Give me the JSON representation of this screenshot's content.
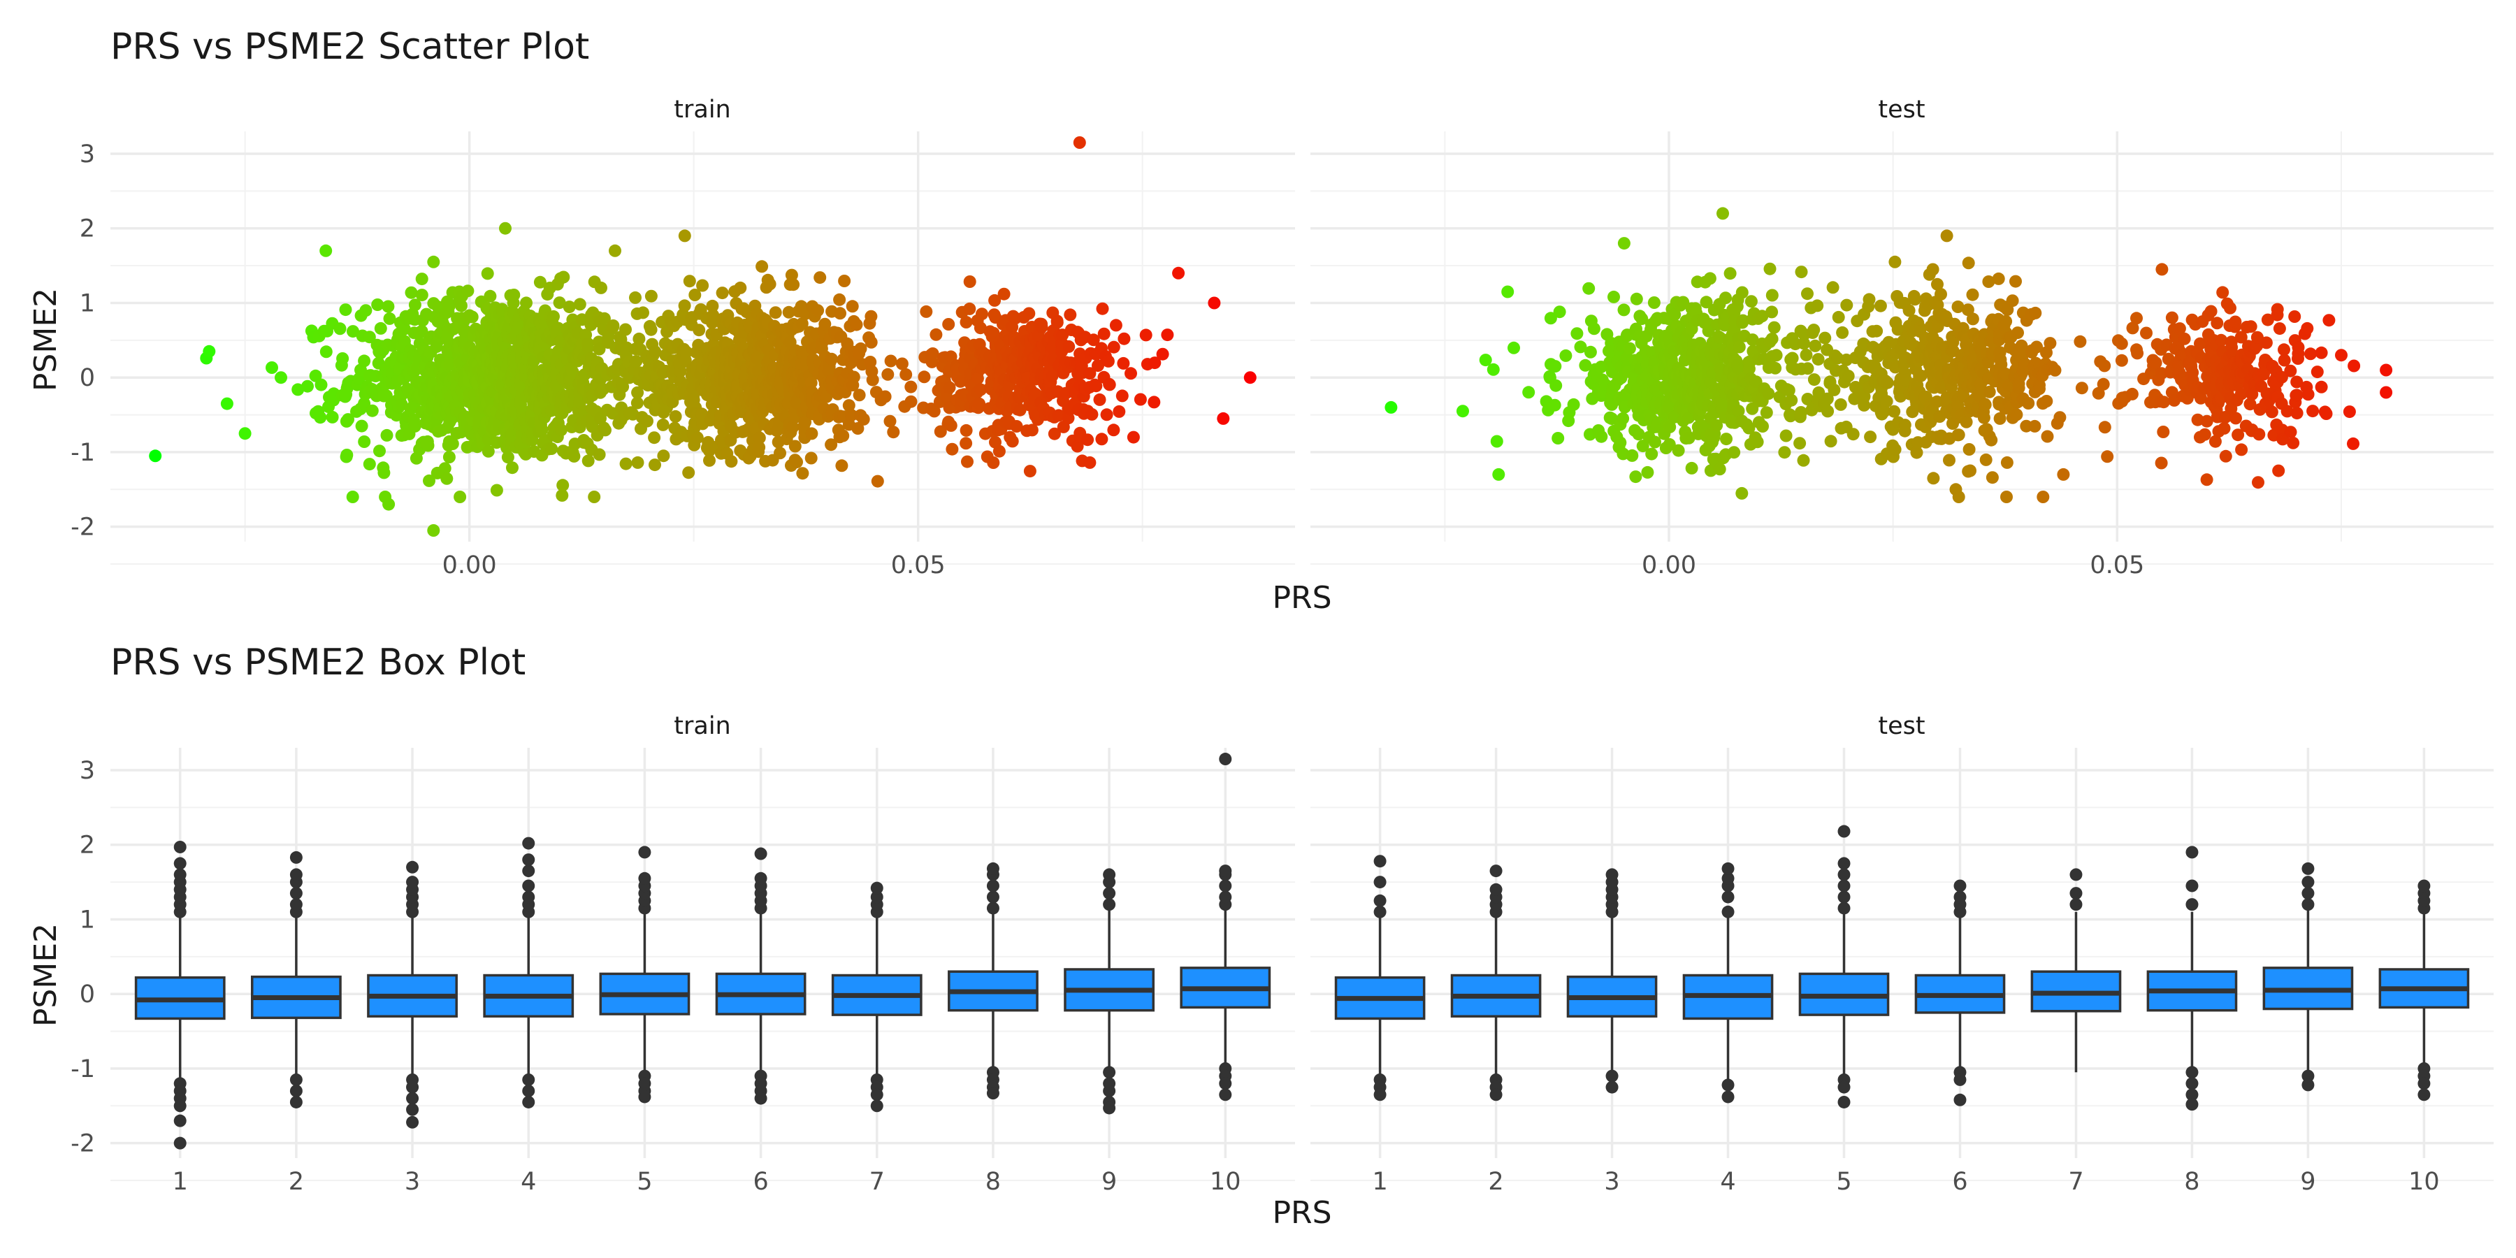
{
  "chart_data": [
    {
      "type": "scatter",
      "title": "PRS vs PSME2 Scatter Plot",
      "xlabel": "PRS",
      "ylabel": "PSME2",
      "xlim": [
        -0.04,
        0.092
      ],
      "ylim": [
        -2.2,
        3.3
      ],
      "x_ticks": [
        "0.00",
        "0.05"
      ],
      "y_ticks": [
        "-2",
        "-1",
        "0",
        "1",
        "2",
        "3"
      ],
      "grid": true,
      "color_gradient": [
        "#00ff00",
        "#ff0000"
      ],
      "color_by": "PRS",
      "panels": [
        {
          "label": "train",
          "clusters": [
            {
              "cx": 0.003,
              "cy": 0.0,
              "sx": 0.008,
              "sy": 0.55,
              "n": 1100
            },
            {
              "cx": 0.032,
              "cy": 0.05,
              "sx": 0.0065,
              "sy": 0.5,
              "n": 750
            },
            {
              "cx": 0.062,
              "cy": 0.05,
              "sx": 0.0055,
              "sy": 0.45,
              "n": 420
            }
          ],
          "outliers": [
            {
              "x": -0.035,
              "y": -1.05
            },
            {
              "x": -0.029,
              "y": 0.35
            },
            {
              "x": -0.027,
              "y": -0.35
            },
            {
              "x": -0.025,
              "y": -0.75
            },
            {
              "x": -0.021,
              "y": 0.0
            },
            {
              "x": -0.016,
              "y": 1.7
            },
            {
              "x": -0.013,
              "y": -1.6
            },
            {
              "x": -0.009,
              "y": -1.7
            },
            {
              "x": -0.004,
              "y": 1.55
            },
            {
              "x": -0.004,
              "y": -2.05
            },
            {
              "x": 0.004,
              "y": 2.0
            },
            {
              "x": 0.024,
              "y": 1.9
            },
            {
              "x": 0.068,
              "y": 3.15
            },
            {
              "x": 0.079,
              "y": 1.4
            },
            {
              "x": 0.083,
              "y": 1.0
            },
            {
              "x": 0.087,
              "y": 0.0
            },
            {
              "x": 0.084,
              "y": -0.55
            },
            {
              "x": 0.074,
              "y": -0.8
            }
          ]
        },
        {
          "label": "test",
          "clusters": [
            {
              "cx": 0.002,
              "cy": 0.0,
              "sx": 0.007,
              "sy": 0.5,
              "n": 600
            },
            {
              "cx": 0.031,
              "cy": 0.05,
              "sx": 0.0065,
              "sy": 0.5,
              "n": 480
            },
            {
              "cx": 0.062,
              "cy": 0.05,
              "sx": 0.0055,
              "sy": 0.45,
              "n": 270
            }
          ],
          "outliers": [
            {
              "x": -0.031,
              "y": -0.4
            },
            {
              "x": -0.023,
              "y": -0.45
            },
            {
              "x": -0.019,
              "y": -1.3
            },
            {
              "x": -0.018,
              "y": 1.15
            },
            {
              "x": -0.005,
              "y": 1.8
            },
            {
              "x": 0.006,
              "y": 2.2
            },
            {
              "x": 0.031,
              "y": 1.9
            },
            {
              "x": 0.032,
              "y": -1.5
            },
            {
              "x": 0.044,
              "y": -1.3
            },
            {
              "x": 0.055,
              "y": 1.45
            },
            {
              "x": 0.068,
              "y": -1.25
            },
            {
              "x": 0.075,
              "y": 0.3
            },
            {
              "x": 0.08,
              "y": 0.1
            },
            {
              "x": 0.08,
              "y": -0.2
            }
          ]
        }
      ]
    },
    {
      "type": "box",
      "title": "PRS vs PSME2 Box Plot",
      "xlabel": "PRS",
      "ylabel": "PSME2",
      "categories": [
        "1",
        "2",
        "3",
        "4",
        "5",
        "6",
        "7",
        "8",
        "9",
        "10"
      ],
      "ylim": [
        -2.2,
        3.3
      ],
      "y_ticks": [
        "-2",
        "-1",
        "0",
        "1",
        "2",
        "3"
      ],
      "grid": true,
      "box_fill": "#1e90ff",
      "box_line": "#333333",
      "panels": [
        {
          "label": "train",
          "boxes": [
            {
              "q1": -0.33,
              "med": -0.08,
              "q3": 0.22,
              "lo": -1.15,
              "hi": 1.05,
              "out_hi": [
                1.1,
                1.2,
                1.3,
                1.4,
                1.5,
                1.6,
                1.75,
                1.97
              ],
              "out_lo": [
                -1.2,
                -1.3,
                -1.4,
                -1.5,
                -1.7,
                -2.0
              ]
            },
            {
              "q1": -0.32,
              "med": -0.05,
              "q3": 0.23,
              "lo": -1.1,
              "hi": 1.05,
              "out_hi": [
                1.1,
                1.2,
                1.35,
                1.5,
                1.6,
                1.83
              ],
              "out_lo": [
                -1.15,
                -1.3,
                -1.45
              ]
            },
            {
              "q1": -0.3,
              "med": -0.03,
              "q3": 0.25,
              "lo": -1.1,
              "hi": 1.05,
              "out_hi": [
                1.1,
                1.2,
                1.3,
                1.4,
                1.5,
                1.7
              ],
              "out_lo": [
                -1.15,
                -1.25,
                -1.4,
                -1.55,
                -1.72
              ]
            },
            {
              "q1": -0.3,
              "med": -0.03,
              "q3": 0.25,
              "lo": -1.1,
              "hi": 1.05,
              "out_hi": [
                1.1,
                1.2,
                1.3,
                1.45,
                1.65,
                1.8,
                2.02
              ],
              "out_lo": [
                -1.15,
                -1.3,
                -1.45
              ]
            },
            {
              "q1": -0.27,
              "med": -0.01,
              "q3": 0.27,
              "lo": -1.05,
              "hi": 1.1,
              "out_hi": [
                1.15,
                1.25,
                1.35,
                1.45,
                1.55,
                1.9
              ],
              "out_lo": [
                -1.1,
                -1.2,
                -1.3,
                -1.38
              ]
            },
            {
              "q1": -0.27,
              "med": -0.01,
              "q3": 0.27,
              "lo": -1.05,
              "hi": 1.1,
              "out_hi": [
                1.15,
                1.25,
                1.35,
                1.45,
                1.55,
                1.88
              ],
              "out_lo": [
                -1.1,
                -1.2,
                -1.3,
                -1.4
              ]
            },
            {
              "q1": -0.28,
              "med": -0.02,
              "q3": 0.25,
              "lo": -1.08,
              "hi": 1.05,
              "out_hi": [
                1.1,
                1.2,
                1.3,
                1.42
              ],
              "out_lo": [
                -1.15,
                -1.25,
                -1.35,
                -1.5
              ]
            },
            {
              "q1": -0.22,
              "med": 0.03,
              "q3": 0.3,
              "lo": -1.0,
              "hi": 1.1,
              "out_hi": [
                1.15,
                1.3,
                1.45,
                1.6,
                1.68
              ],
              "out_lo": [
                -1.05,
                -1.15,
                -1.25,
                -1.33
              ]
            },
            {
              "q1": -0.22,
              "med": 0.05,
              "q3": 0.33,
              "lo": -1.0,
              "hi": 1.12,
              "out_hi": [
                1.2,
                1.35,
                1.5,
                1.6
              ],
              "out_lo": [
                -1.05,
                -1.2,
                -1.3,
                -1.45,
                -1.53
              ]
            },
            {
              "q1": -0.18,
              "med": 0.07,
              "q3": 0.35,
              "lo": -0.95,
              "hi": 1.15,
              "out_hi": [
                1.2,
                1.3,
                1.45,
                1.6,
                1.65,
                3.15
              ],
              "out_lo": [
                -1.0,
                -1.1,
                -1.2,
                -1.35
              ]
            }
          ]
        },
        {
          "label": "test",
          "boxes": [
            {
              "q1": -0.33,
              "med": -0.06,
              "q3": 0.22,
              "lo": -1.1,
              "hi": 1.05,
              "out_hi": [
                1.1,
                1.25,
                1.5,
                1.78
              ],
              "out_lo": [
                -1.15,
                -1.25,
                -1.35
              ]
            },
            {
              "q1": -0.3,
              "med": -0.03,
              "q3": 0.25,
              "lo": -1.1,
              "hi": 1.05,
              "out_hi": [
                1.1,
                1.2,
                1.3,
                1.4,
                1.65
              ],
              "out_lo": [
                -1.15,
                -1.25,
                -1.35
              ]
            },
            {
              "q1": -0.3,
              "med": -0.05,
              "q3": 0.23,
              "lo": -1.05,
              "hi": 1.05,
              "out_hi": [
                1.1,
                1.2,
                1.3,
                1.4,
                1.5,
                1.6
              ],
              "out_lo": [
                -1.1,
                -1.25
              ]
            },
            {
              "q1": -0.33,
              "med": -0.02,
              "q3": 0.25,
              "lo": -1.15,
              "hi": 1.05,
              "out_hi": [
                1.1,
                1.3,
                1.45,
                1.55,
                1.68
              ],
              "out_lo": [
                -1.22,
                -1.38
              ]
            },
            {
              "q1": -0.28,
              "med": -0.03,
              "q3": 0.27,
              "lo": -1.1,
              "hi": 1.1,
              "out_hi": [
                1.15,
                1.3,
                1.45,
                1.6,
                1.75,
                2.18
              ],
              "out_lo": [
                -1.15,
                -1.25,
                -1.45
              ]
            },
            {
              "q1": -0.25,
              "med": -0.02,
              "q3": 0.25,
              "lo": -1.0,
              "hi": 1.05,
              "out_hi": [
                1.1,
                1.2,
                1.3,
                1.45
              ],
              "out_lo": [
                -1.05,
                -1.15,
                -1.42
              ]
            },
            {
              "q1": -0.23,
              "med": 0.01,
              "q3": 0.3,
              "lo": -1.05,
              "hi": 1.1,
              "out_hi": [
                1.2,
                1.35,
                1.6
              ]
            },
            {
              "q1": -0.22,
              "med": 0.04,
              "q3": 0.3,
              "lo": -1.0,
              "hi": 1.1,
              "out_hi": [
                1.2,
                1.45,
                1.9
              ],
              "out_lo": [
                -1.05,
                -1.2,
                -1.35,
                -1.48
              ]
            },
            {
              "q1": -0.2,
              "med": 0.05,
              "q3": 0.35,
              "lo": -1.05,
              "hi": 1.15,
              "out_hi": [
                1.2,
                1.35,
                1.5,
                1.68
              ],
              "out_lo": [
                -1.1,
                -1.22
              ]
            },
            {
              "q1": -0.18,
              "med": 0.07,
              "q3": 0.33,
              "lo": -0.95,
              "hi": 1.1,
              "out_hi": [
                1.15,
                1.25,
                1.35,
                1.45
              ],
              "out_lo": [
                -1.0,
                -1.1,
                -1.2,
                -1.35
              ]
            }
          ]
        }
      ]
    }
  ]
}
